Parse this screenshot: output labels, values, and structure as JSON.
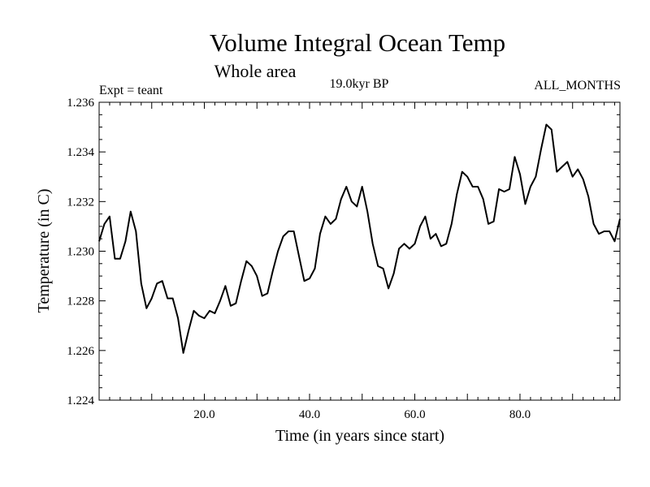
{
  "chart_data": {
    "type": "line",
    "title": "Volume Integral Ocean Temp",
    "subtitle": "Whole area",
    "period_label": "19.0kyr BP",
    "experiment_label": "Expt = teant",
    "months_label": "ALL_MONTHS",
    "xlabel": "Time (in years since start)",
    "ylabel": "Temperature (in C)",
    "xlim": [
      0,
      99
    ],
    "ylim": [
      1.224,
      1.236
    ],
    "x_ticks": [
      20,
      40,
      60,
      80
    ],
    "x_tick_labels": [
      "20.0",
      "40.0",
      "60.0",
      "80.0"
    ],
    "y_ticks": [
      1.224,
      1.226,
      1.228,
      1.23,
      1.232,
      1.234,
      1.236
    ],
    "y_tick_labels": [
      "1.224",
      "1.226",
      "1.228",
      "1.230",
      "1.232",
      "1.234",
      "1.236"
    ],
    "grid": false,
    "series": [
      {
        "name": "Volume Integral Ocean Temp",
        "x": [
          0,
          1,
          2,
          3,
          4,
          5,
          6,
          7,
          8,
          9,
          10,
          11,
          12,
          13,
          14,
          15,
          16,
          17,
          18,
          19,
          20,
          21,
          22,
          23,
          24,
          25,
          26,
          27,
          28,
          29,
          30,
          31,
          32,
          33,
          34,
          35,
          36,
          37,
          38,
          39,
          40,
          41,
          42,
          43,
          44,
          45,
          46,
          47,
          48,
          49,
          50,
          51,
          52,
          53,
          54,
          55,
          56,
          57,
          58,
          59,
          60,
          61,
          62,
          63,
          64,
          65,
          66,
          67,
          68,
          69,
          70,
          71,
          72,
          73,
          74,
          75,
          76,
          77,
          78,
          79,
          80,
          81,
          82,
          83,
          84,
          85,
          86,
          87,
          88,
          89,
          90,
          91,
          92,
          93,
          94,
          95,
          96,
          97,
          98,
          99
        ],
        "values": [
          1.2304,
          1.2311,
          1.2314,
          1.2297,
          1.2297,
          1.2304,
          1.2316,
          1.2308,
          1.2287,
          1.2277,
          1.2281,
          1.2287,
          1.2288,
          1.2281,
          1.2281,
          1.2273,
          1.2259,
          1.2268,
          1.2276,
          1.2274,
          1.2273,
          1.2276,
          1.2275,
          1.228,
          1.2286,
          1.2278,
          1.2279,
          1.2288,
          1.2296,
          1.2294,
          1.229,
          1.2282,
          1.2283,
          1.2292,
          1.23,
          1.2306,
          1.2308,
          1.2308,
          1.2298,
          1.2288,
          1.2289,
          1.2293,
          1.2307,
          1.2314,
          1.2311,
          1.2313,
          1.2321,
          1.2326,
          1.232,
          1.2318,
          1.2326,
          1.2316,
          1.2303,
          1.2294,
          1.2293,
          1.2285,
          1.2291,
          1.2301,
          1.2303,
          1.2301,
          1.2303,
          1.231,
          1.2314,
          1.2305,
          1.2307,
          1.2302,
          1.2303,
          1.2311,
          1.2323,
          1.2332,
          1.233,
          1.2326,
          1.2326,
          1.2321,
          1.2311,
          1.2312,
          1.2325,
          1.2324,
          1.2325,
          1.2338,
          1.2331,
          1.2319,
          1.2326,
          1.233,
          1.2341,
          1.2351,
          1.2349,
          1.2332,
          1.2334,
          1.2336,
          1.233,
          1.2333,
          1.2329,
          1.2322,
          1.2311,
          1.2307,
          1.2308,
          1.2308,
          1.2304,
          1.2313
        ]
      }
    ]
  }
}
